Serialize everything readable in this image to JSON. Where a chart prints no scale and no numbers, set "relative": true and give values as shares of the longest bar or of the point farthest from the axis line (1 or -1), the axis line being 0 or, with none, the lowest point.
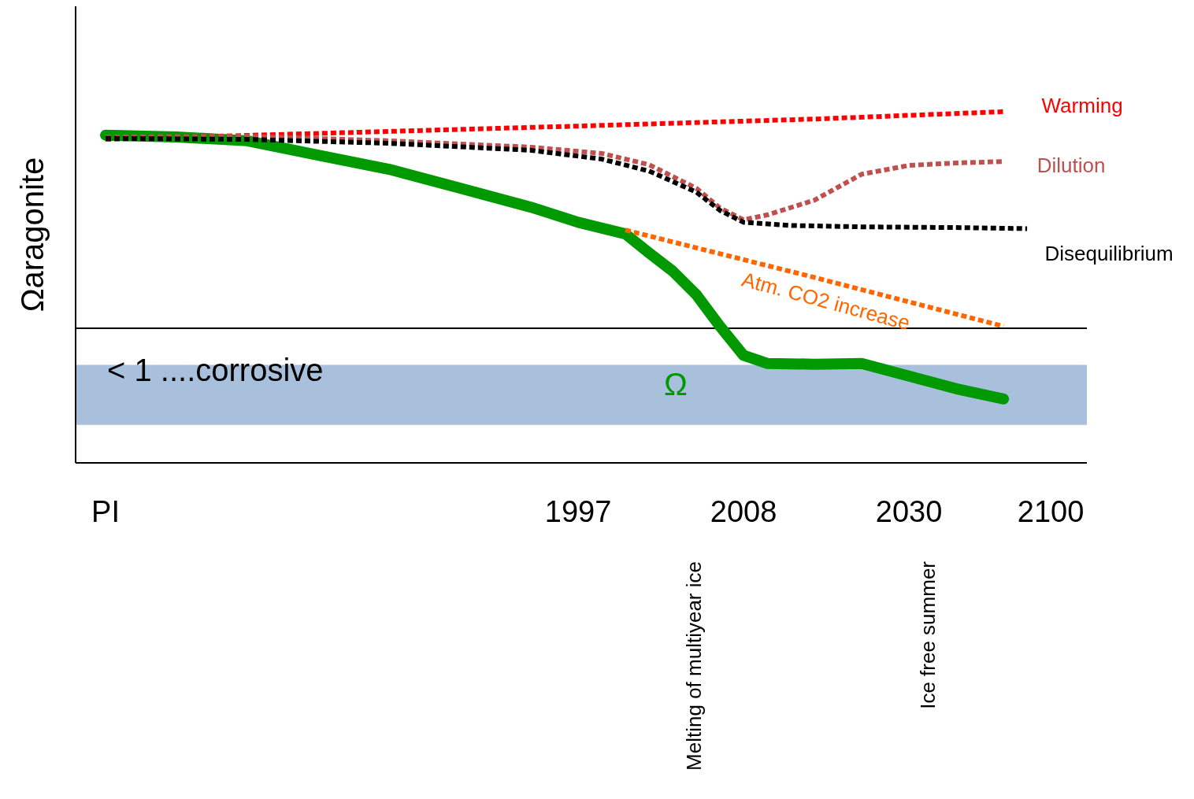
{
  "chart_data": {
    "type": "line",
    "relative": true,
    "ylabel": "Ωaragonite",
    "categories": [
      "PI",
      null,
      null,
      null,
      null,
      null,
      null,
      null,
      null,
      null,
      null,
      null,
      null,
      null,
      null,
      null,
      null,
      null,
      null,
      null,
      "1997",
      null,
      null,
      null,
      null,
      null,
      null,
      "2008",
      null,
      null,
      null,
      null,
      null,
      null,
      "2030",
      null,
      null,
      null,
      null,
      null,
      "2100"
    ],
    "series": [
      {
        "name": "Warming",
        "color": "#ff0000",
        "line_style": "dotted",
        "values": [
          0.921,
          null,
          null,
          null,
          null,
          null,
          null,
          null,
          null,
          null,
          0.94,
          null,
          null,
          null,
          null,
          null,
          null,
          null,
          null,
          null,
          0.959,
          null,
          null,
          null,
          null,
          null,
          null,
          null,
          null,
          null,
          0.979,
          null,
          null,
          null,
          null,
          null,
          null,
          null,
          1.0,
          null,
          null
        ]
      },
      {
        "name": "Dilution",
        "color": "#c0504d",
        "line_style": "dotted",
        "values": [
          0.928,
          null,
          null,
          null,
          null,
          null,
          0.93,
          null,
          null,
          null,
          null,
          null,
          0.917,
          null,
          null,
          null,
          null,
          null,
          0.899,
          null,
          null,
          0.881,
          null,
          0.849,
          null,
          0.782,
          0.726,
          0.692,
          0.706,
          null,
          0.748,
          null,
          0.822,
          null,
          0.847,
          null,
          0.854,
          null,
          0.858,
          null,
          null
        ]
      },
      {
        "name": "Disequilibrium",
        "color": "#000000",
        "line_style": "dotted",
        "values": [
          0.924,
          null,
          null,
          null,
          null,
          null,
          0.921,
          null,
          null,
          null,
          null,
          null,
          0.91,
          null,
          null,
          null,
          null,
          null,
          0.89,
          null,
          null,
          0.865,
          null,
          0.831,
          null,
          0.771,
          0.719,
          0.685,
          null,
          0.676,
          null,
          null,
          0.672,
          null,
          null,
          null,
          0.67,
          null,
          null,
          0.667,
          null
        ]
      },
      {
        "name": "Atm. CO2 increase",
        "color": "#ff6600",
        "line_style": "dotted",
        "values": [
          null,
          null,
          null,
          null,
          null,
          null,
          null,
          null,
          null,
          null,
          null,
          null,
          null,
          null,
          null,
          null,
          null,
          null,
          null,
          null,
          null,
          null,
          0.663,
          null,
          null,
          null,
          null,
          null,
          null,
          null,
          0.528,
          null,
          null,
          null,
          null,
          null,
          null,
          null,
          0.389,
          null,
          null
        ]
      },
      {
        "name": "Ω",
        "color": "#009900",
        "line_style": "solid",
        "values": [
          0.933,
          null,
          null,
          0.928,
          null,
          null,
          0.917,
          null,
          null,
          0.876,
          null,
          null,
          0.836,
          null,
          null,
          0.782,
          null,
          null,
          0.728,
          null,
          0.685,
          null,
          0.652,
          0.598,
          0.546,
          0.479,
          0.389,
          0.306,
          0.283,
          null,
          0.281,
          null,
          0.283,
          null,
          0.247,
          null,
          0.211,
          null,
          0.182,
          null,
          null
        ]
      }
    ],
    "ref_lines": [
      {
        "axis": "y",
        "value": 0.383,
        "color": "#000000"
      }
    ],
    "bands": [
      {
        "axis": "y",
        "from": 0.108,
        "to": 0.279,
        "label": "< 1 ....corrosive",
        "color": "#a9c0dd"
      }
    ],
    "annotations": [
      "Melting of multiyear ice",
      "Ice free summer"
    ]
  }
}
